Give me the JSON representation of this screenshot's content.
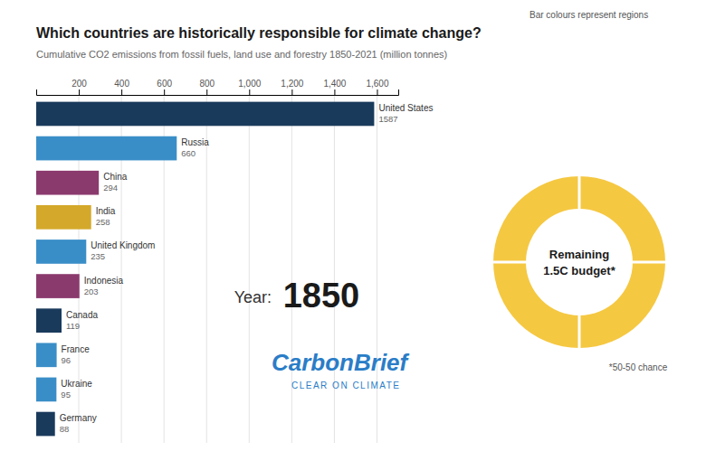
{
  "chart_data": {
    "type": "bar",
    "orientation": "horizontal",
    "title": "Which countries are historically responsible for climate change?",
    "subtitle": "Cumulative CO2 emissions from fossil fuels, land use and forestry 1850-2021 (million tonnes)",
    "categories": [
      "United States",
      "Russia",
      "China",
      "India",
      "United Kingdom",
      "Indonesia",
      "Canada",
      "France",
      "Ukraine",
      "Germany"
    ],
    "values": [
      1587,
      660,
      294,
      258,
      235,
      203,
      119,
      96,
      95,
      88
    ],
    "colors": [
      "#1a3a5c",
      "#3a8ec7",
      "#8b3a6e",
      "#d4a82a",
      "#3a8ec7",
      "#8b3a6e",
      "#1a3a5c",
      "#3a8ec7",
      "#3a8ec7",
      "#1a3a5c"
    ],
    "xlim": [
      0,
      1700
    ],
    "xticks": [
      200,
      400,
      600,
      800,
      {
        "value": 1000,
        "label": "1,000"
      },
      {
        "value": 1200,
        "label": "1,200"
      },
      {
        "value": 1400,
        "label": "1,400"
      },
      {
        "value": 1600,
        "label": "1,600"
      }
    ],
    "grid": true,
    "data_labels": true,
    "tick_labels": "x",
    "annotations": [
      "Bar colours represent regions",
      "Year:",
      "1850",
      "CarbonBrief",
      "CLEAR ON CLIMATE",
      "Remaining",
      "1.5C budget*",
      "*50-50 chance"
    ]
  }
}
